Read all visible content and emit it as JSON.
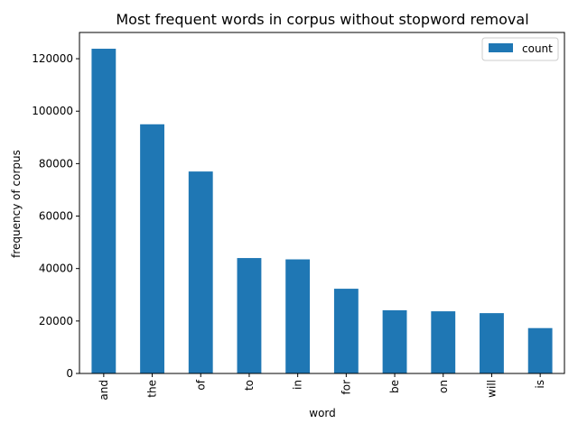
{
  "chart_data": {
    "type": "bar",
    "title": "Most frequent words in corpus without stopword removal",
    "xlabel": "word",
    "ylabel": "frequency of corpus",
    "categories": [
      "and",
      "the",
      "of",
      "to",
      "in",
      "for",
      "be",
      "on",
      "will",
      "is"
    ],
    "series": [
      {
        "name": "count",
        "values": [
          123800,
          95000,
          77000,
          44000,
          43500,
          32300,
          24100,
          23700,
          23000,
          17300
        ],
        "color": "#1f77b4"
      }
    ],
    "ylim": [
      0,
      130000
    ],
    "yticks": [
      0,
      20000,
      40000,
      60000,
      80000,
      100000,
      120000
    ],
    "grid": false,
    "legend_position": "top-right"
  }
}
